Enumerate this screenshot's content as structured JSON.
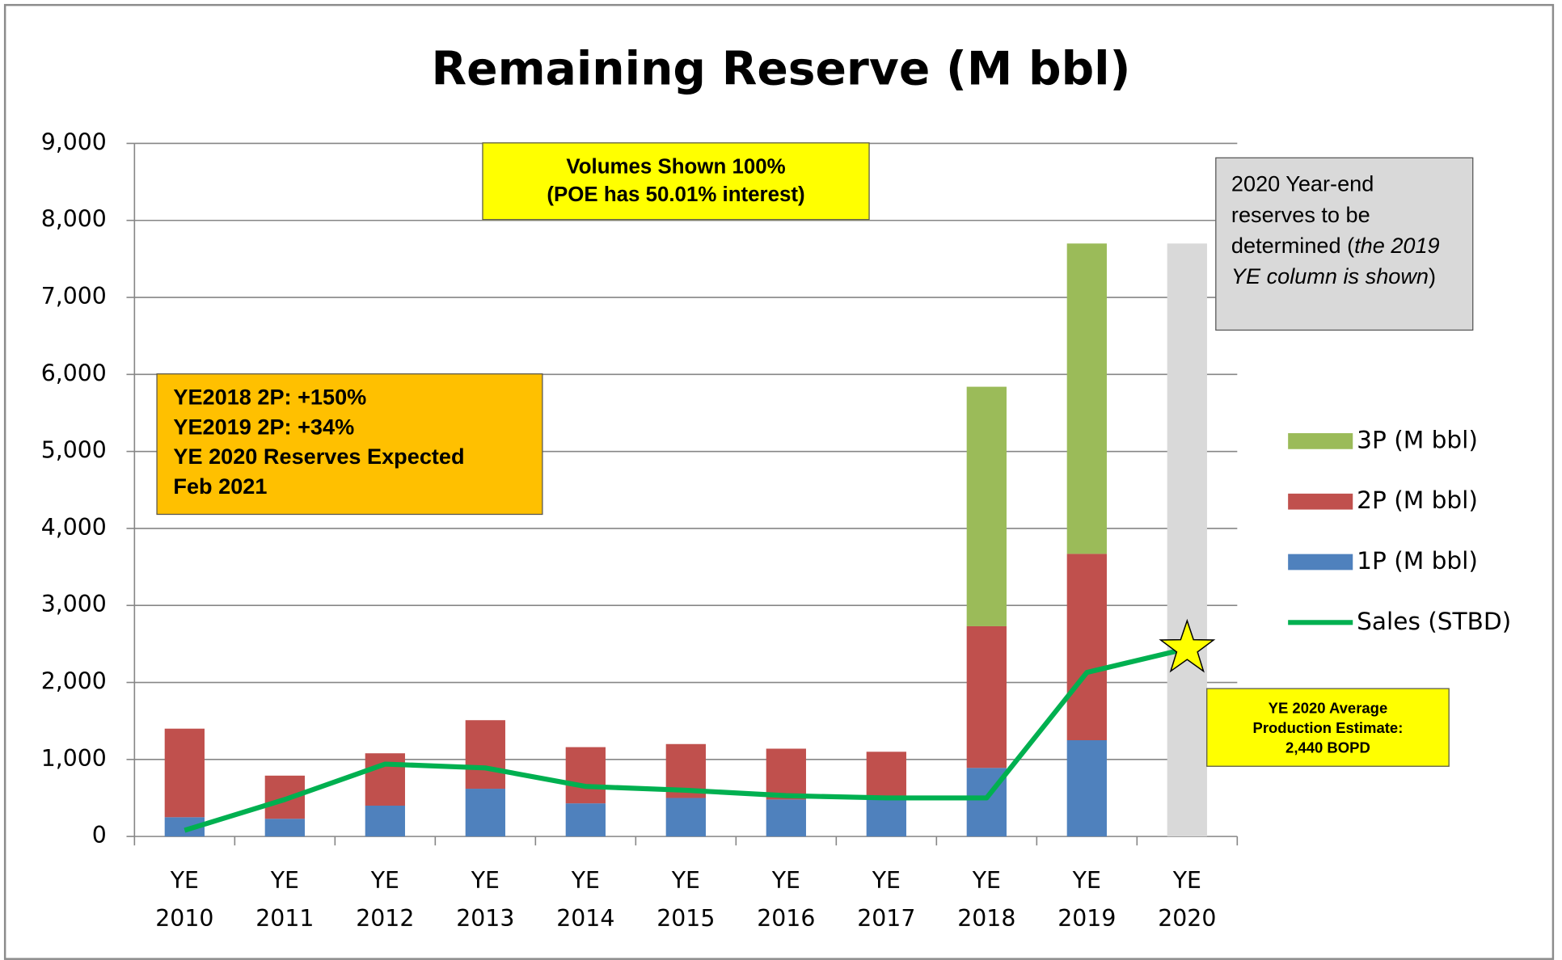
{
  "chart_data": {
    "type": "bar",
    "stacked": true,
    "title": "Remaining Reserve (M bbl)",
    "categories": [
      "YE 2010",
      "YE 2011",
      "YE 2012",
      "YE 2013",
      "YE 2014",
      "YE 2015",
      "YE 2016",
      "YE 2017",
      "YE 2018",
      "YE 2019",
      "YE 2020"
    ],
    "series": [
      {
        "name": "1P (M bbl)",
        "color": "#4f81bd",
        "values": [
          250,
          230,
          400,
          620,
          430,
          500,
          480,
          480,
          890,
          1250,
          null
        ]
      },
      {
        "name": "2P (M bbl)",
        "color": "#c0504d",
        "values": [
          1150,
          560,
          680,
          890,
          730,
          700,
          660,
          620,
          1840,
          2420,
          null
        ]
      },
      {
        "name": "3P (M bbl)",
        "color": "#9bbb59",
        "values": [
          null,
          null,
          null,
          null,
          null,
          null,
          null,
          null,
          3110,
          4030,
          null
        ]
      },
      {
        "name": "Sales (STBD)",
        "type": "line",
        "color": "#00b050",
        "values": [
          80,
          480,
          940,
          890,
          650,
          600,
          530,
          500,
          500,
          2130,
          2440
        ]
      }
    ],
    "placeholder": {
      "color": "#d9d9d9",
      "values": [
        null,
        null,
        null,
        null,
        null,
        null,
        null,
        null,
        null,
        null,
        7700
      ]
    },
    "ylim": [
      0,
      9000
    ],
    "yticks": [
      0,
      {
        "value": 1000,
        "label": "1,000"
      },
      {
        "value": 2000,
        "label": "2,000"
      },
      {
        "value": 3000,
        "label": "3,000"
      },
      {
        "value": 4000,
        "label": "4,000"
      },
      {
        "value": 5000,
        "label": "5,000"
      },
      {
        "value": 6000,
        "label": "6,000"
      },
      {
        "value": 7000,
        "label": "7,000"
      },
      {
        "value": 8000,
        "label": "8,000"
      },
      {
        "value": 9000,
        "label": "9,000"
      }
    ],
    "grid": true,
    "legend": "right",
    "annotations": [
      {
        "lines": [
          "Volumes Shown 100%",
          "(POE has 50.01% interest)"
        ]
      },
      {
        "lines": [
          "YE2018 2P:  +150%",
          "YE2019 2P:  +34%",
          "YE 2020 Reserves Expected",
          "Feb 2021"
        ]
      },
      {
        "parts": [
          {
            "text": "2020 Year-end reserves to be determined ("
          },
          {
            "text": "the 2019 YE column is shown",
            "italic": true
          },
          {
            "text": ")"
          }
        ]
      },
      {
        "lines": [
          "YE 2020 Average",
          "Production Estimate:",
          "2,440 BOPD"
        ]
      }
    ]
  }
}
